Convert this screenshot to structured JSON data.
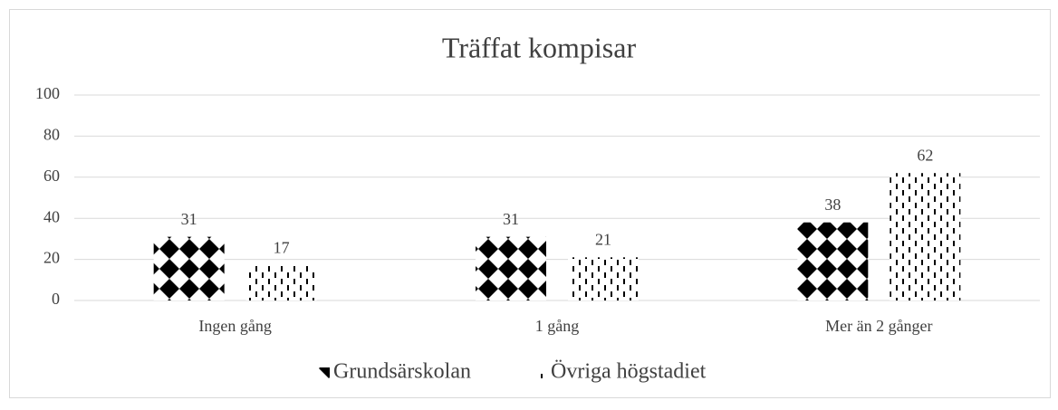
{
  "chart_data": {
    "type": "bar",
    "title": "Träffat kompisar",
    "categories": [
      "Ingen gång",
      "1 gång",
      "Mer än 2 gånger"
    ],
    "series": [
      {
        "name": "Grundsärskolan",
        "color": "#000000",
        "values": [
          31,
          31,
          38
        ]
      },
      {
        "name": "Övriga högstadiet",
        "color": "#000000",
        "values": [
          17,
          21,
          62
        ]
      }
    ],
    "ylim": [
      0,
      100
    ],
    "yticks": [
      0,
      20,
      40,
      60,
      80,
      100
    ],
    "grid": true,
    "legend": "bottom"
  }
}
